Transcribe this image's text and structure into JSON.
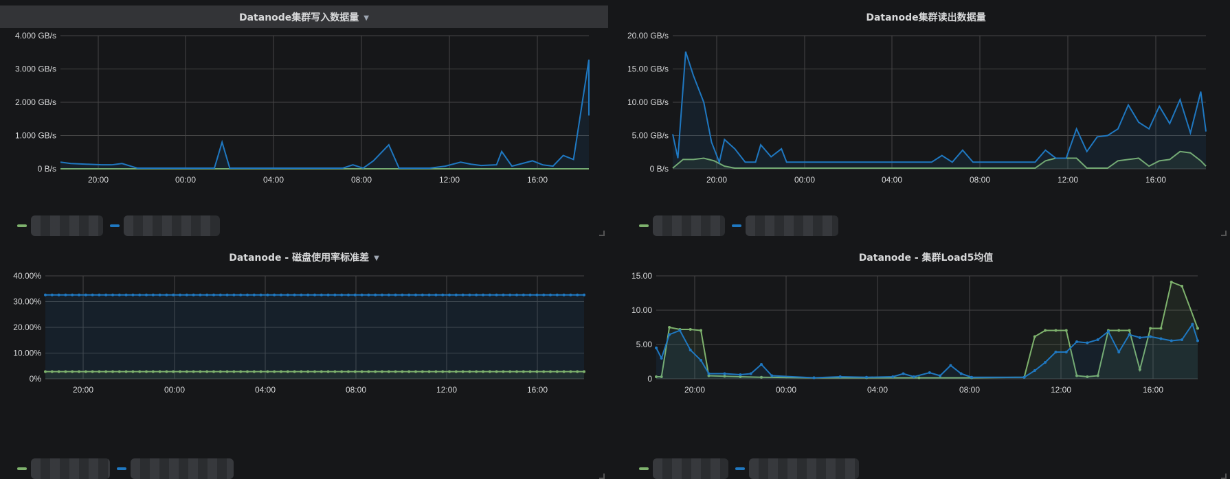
{
  "colors": {
    "green": "#7eb26d",
    "blue": "#1f78c1",
    "grid": "#464646",
    "text": "#d8d9da"
  },
  "panels": [
    {
      "title": "Datanode集群写入数据量",
      "has_caret": true,
      "active": true,
      "chart_data": {
        "type": "line",
        "y_ticks": [
          "4.000 GB/s",
          "3.000 GB/s",
          "2.000 GB/s",
          "1.000 GB/s",
          "0 B/s"
        ],
        "x_ticks": [
          "20:00",
          "00:00",
          "04:00",
          "08:00",
          "12:00",
          "16:00"
        ]
      }
    },
    {
      "title": "Datanode集群读出数据量",
      "has_caret": false,
      "active": false,
      "chart_data": {
        "type": "area",
        "y_ticks": [
          "20.00 GB/s",
          "15.00 GB/s",
          "10.00 GB/s",
          "5.00 GB/s",
          "0 B/s"
        ],
        "x_ticks": [
          "20:00",
          "00:00",
          "04:00",
          "08:00",
          "12:00",
          "16:00"
        ]
      }
    },
    {
      "title": "Datanode - 磁盘使用率标准差",
      "has_caret": true,
      "active": false,
      "chart_data": {
        "type": "area",
        "y_ticks": [
          "40.00%",
          "30.00%",
          "20.00%",
          "10.00%",
          "0%"
        ],
        "x_ticks": [
          "20:00",
          "00:00",
          "04:00",
          "08:00",
          "12:00",
          "16:00"
        ]
      }
    },
    {
      "title": "Datanode - 集群Load5均值",
      "has_caret": false,
      "active": false,
      "chart_data": {
        "type": "area",
        "y_ticks": [
          "15.00",
          "10.00",
          "5.00",
          "0"
        ],
        "x_ticks": [
          "20:00",
          "00:00",
          "04:00",
          "08:00",
          "12:00",
          "16:00"
        ]
      }
    }
  ]
}
